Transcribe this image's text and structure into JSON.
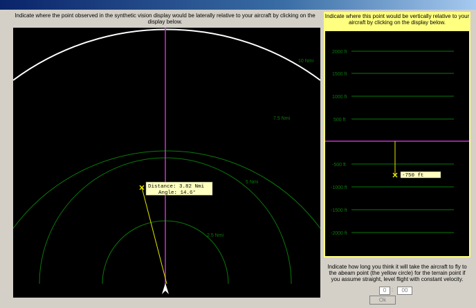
{
  "lateral": {
    "instruction": "Indicate where the point observed in the synthetic vision display would be laterally relative to your aircraft by clicking on the display below.",
    "rings": [
      "2.5 Nmi",
      "5 Nmi",
      "7.5 Nmi",
      "10 Nmi"
    ],
    "readout": {
      "distance": "Distance: 3.82 Nmi",
      "angle": "Angle: 14.6°"
    }
  },
  "vertical": {
    "instruction": "Indicate where this point would be vertically relative to your aircraft by clicking on the display below.",
    "levels": [
      "2000 ft",
      "1500 ft",
      "1000 ft",
      "500 ft",
      "-500 ft",
      "-1000 ft",
      "-1500 ft",
      "-2000 ft"
    ],
    "readout": "-750 ft"
  },
  "timing": {
    "instruction": "Indicate how long you think it will take the aircraft to fly to the abeam point (the yellow circle) for the terrain point if you assume straight, level flight with constant velocity.",
    "minutes": "0",
    "separator": ":",
    "seconds": "00",
    "ok_label": "Ok"
  },
  "colors": {
    "ring": "#0a7a0a",
    "center_line": "#cc33cc",
    "marker": "#e6e600",
    "outer_arc": "#ffffff",
    "readout_bg": "#ffffc0"
  }
}
